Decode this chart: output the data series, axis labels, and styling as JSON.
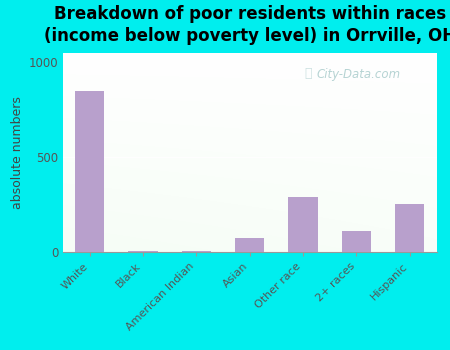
{
  "categories": [
    "White",
    "Black",
    "American Indian",
    "Asian",
    "Other race",
    "2+ races",
    "Hispanic"
  ],
  "values": [
    850,
    5,
    5,
    75,
    290,
    110,
    255
  ],
  "bar_color": "#b8a0cc",
  "title": "Breakdown of poor residents within races\n(income below poverty level) in Orrville, OH",
  "ylabel": "absolute numbers",
  "ylim": [
    0,
    1050
  ],
  "yticks": [
    0,
    500,
    1000
  ],
  "background_color": "#00eeee",
  "watermark": "City-Data.com",
  "title_fontsize": 12,
  "ylabel_fontsize": 9
}
